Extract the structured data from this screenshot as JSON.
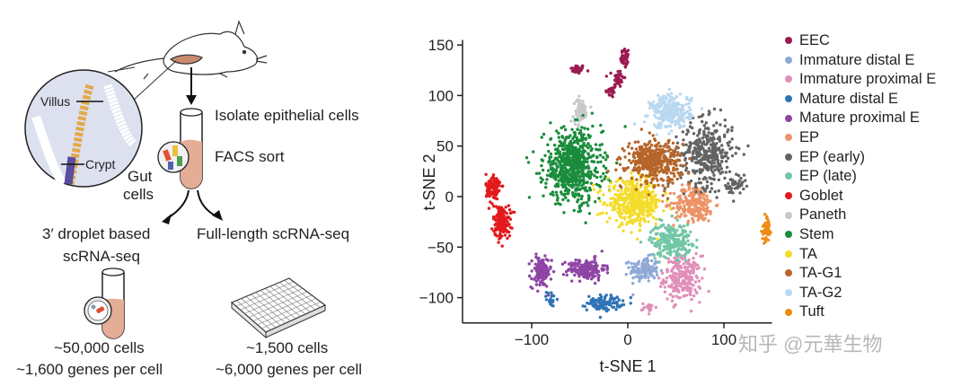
{
  "diagram": {
    "villus_label": "Villus",
    "crypt_label": "Crypt",
    "gut_cells_label_1": "Gut",
    "gut_cells_label_2": "cells",
    "isolate_label": "Isolate epithelial cells",
    "facs_label": "FACS sort",
    "droplet_label_1": "3′ droplet based",
    "droplet_label_2": "scRNA-seq",
    "fulllength_label": "Full-length scRNA-seq",
    "droplet_cells": "~50,000 cells",
    "droplet_genes": "~1,600 genes per cell",
    "fulllength_cells": "~1,500 cells",
    "fulllength_genes": "~6,000 genes per cell"
  },
  "watermark": "知乎 @元華生物",
  "chart_data": {
    "type": "scatter",
    "xlabel": "t-SNE 1",
    "ylabel": "t-SNE 2",
    "xlim": [
      -172,
      150
    ],
    "ylim": [
      -125,
      155
    ],
    "xticks": [
      -100,
      0,
      100
    ],
    "yticks": [
      150,
      100,
      50,
      0,
      -50,
      -100
    ],
    "grid": false,
    "legend_position": "right",
    "series": [
      {
        "name": "EEC",
        "color": "#9b1b52",
        "clusters": [
          [
            -52,
            126,
            5,
            3,
            40
          ],
          [
            -3,
            137,
            3,
            7,
            40
          ],
          [
            -10,
            117,
            4,
            6,
            40
          ],
          [
            -18,
            104,
            4,
            4,
            25
          ]
        ]
      },
      {
        "name": "Immature distal E",
        "color": "#8fa8d6",
        "clusters": [
          [
            17,
            -72,
            10,
            8,
            130
          ]
        ]
      },
      {
        "name": "Immature proximal E",
        "color": "#e08fb9",
        "clusters": [
          [
            57,
            -81,
            13,
            15,
            230
          ],
          [
            22,
            -110,
            5,
            3,
            20
          ]
        ]
      },
      {
        "name": "Mature distal E",
        "color": "#2f74b5",
        "clusters": [
          [
            -24,
            -105,
            12,
            5,
            110
          ],
          [
            -80,
            -101,
            3,
            5,
            20
          ]
        ]
      },
      {
        "name": "Mature proximal E",
        "color": "#8e44a5",
        "clusters": [
          [
            -90,
            -75,
            7,
            10,
            120
          ],
          [
            -43,
            -72,
            13,
            7,
            170
          ]
        ]
      },
      {
        "name": "EP",
        "color": "#ec9366",
        "clusters": [
          [
            69,
            -7,
            14,
            12,
            230
          ]
        ]
      },
      {
        "name": "EP (early)",
        "color": "#636363",
        "clusters": [
          [
            82,
            43,
            18,
            22,
            360
          ],
          [
            112,
            10,
            8,
            6,
            50
          ]
        ]
      },
      {
        "name": "EP (late)",
        "color": "#72c6a6",
        "clusters": [
          [
            45,
            -43,
            14,
            11,
            230
          ]
        ]
      },
      {
        "name": "Goblet",
        "color": "#e31a1c",
        "clusters": [
          [
            -140,
            8,
            5,
            10,
            110
          ],
          [
            -131,
            -25,
            6,
            11,
            150
          ]
        ]
      },
      {
        "name": "Paneth",
        "color": "#c8c8c8",
        "clusters": [
          [
            -49,
            85,
            5,
            8,
            70
          ]
        ]
      },
      {
        "name": "Stem",
        "color": "#1a8c3c",
        "clusters": [
          [
            -57,
            30,
            20,
            24,
            650
          ]
        ]
      },
      {
        "name": "TA",
        "color": "#f4dc2a",
        "clusters": [
          [
            7,
            -6,
            19,
            14,
            420
          ]
        ]
      },
      {
        "name": "TA-G1",
        "color": "#b5652a",
        "clusters": [
          [
            27,
            35,
            19,
            14,
            380
          ]
        ]
      },
      {
        "name": "TA-G2",
        "color": "#b8d8f0",
        "clusters": [
          [
            45,
            84,
            14,
            11,
            260
          ]
        ]
      },
      {
        "name": "Tuft",
        "color": "#ef8a13",
        "clusters": [
          [
            144,
            -34,
            3,
            8,
            45
          ]
        ]
      }
    ]
  }
}
